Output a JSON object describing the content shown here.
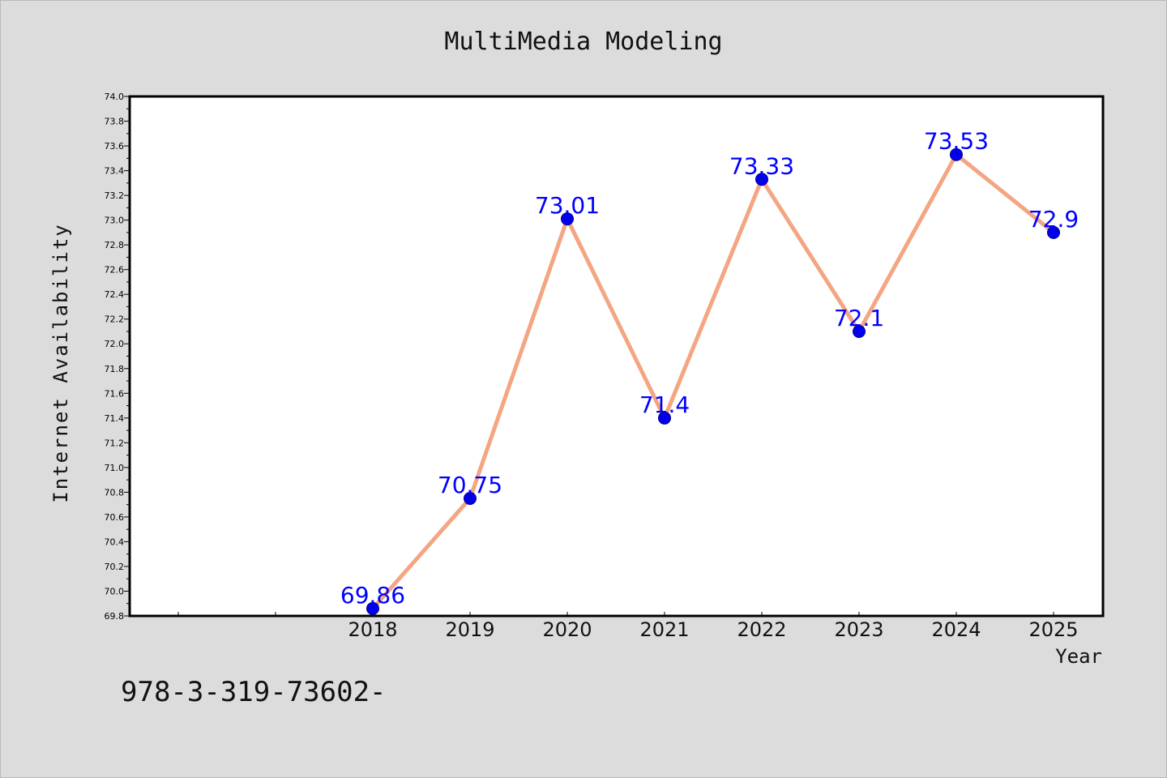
{
  "page": {
    "footer_code": "978-3-319-73602-"
  },
  "chart_data": {
    "type": "line",
    "title": "MultiMedia Modeling",
    "xlabel": "Year",
    "ylabel": "Internet Availability",
    "categories": [
      "2018",
      "2019",
      "2020",
      "2021",
      "2022",
      "2023",
      "2024",
      "2025"
    ],
    "series": [
      {
        "values": [
          69.86,
          70.75,
          73.01,
          71.4,
          73.33,
          72.1,
          73.53,
          72.9
        ]
      }
    ],
    "data_labels": [
      "69.86",
      "70.75",
      "73.01",
      "71.4",
      "73.33",
      "72.1",
      "73.53",
      "72.9"
    ],
    "ylim": [
      69.8,
      74.0
    ],
    "y_ticks": [
      "69.8",
      "70.0",
      "70.2",
      "70.4",
      "70.6",
      "70.8",
      "71.0",
      "71.2",
      "71.4",
      "71.6",
      "71.8",
      "72.0",
      "72.2",
      "72.4",
      "72.6",
      "72.8",
      "73.0",
      "73.2",
      "73.4",
      "73.6",
      "73.8",
      "74.0"
    ],
    "grid": false,
    "legend": "none",
    "colors": {
      "line": "#f4a582",
      "marker": "#0000ee",
      "data_label": "#0000ff",
      "plot_background": "#ffffff",
      "page_background": "#dcdcdc"
    }
  }
}
